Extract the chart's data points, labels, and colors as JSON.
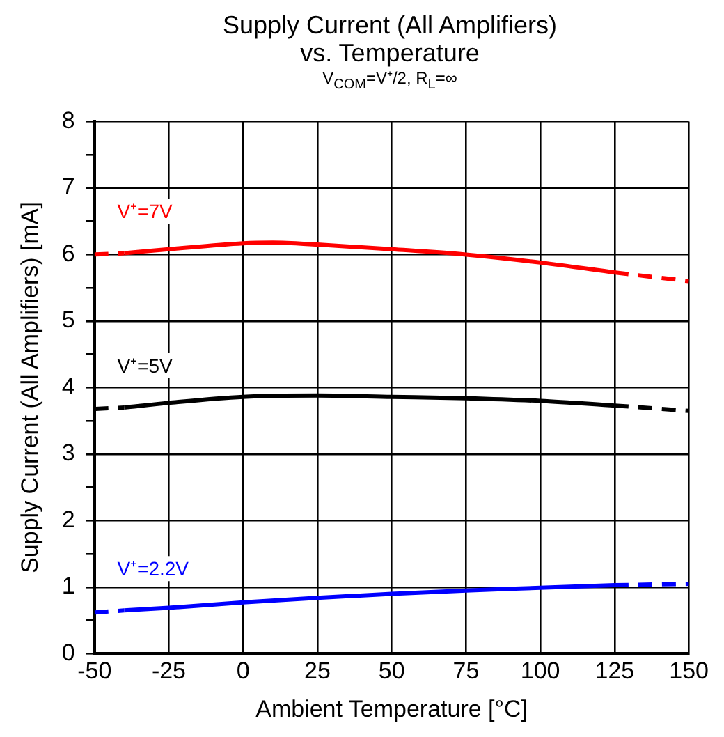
{
  "chart_data": {
    "type": "line",
    "title": "Supply Current (All Amplifiers)\nvs. Temperature",
    "subtitle": "V$_{COM}$=V⁺/2, R$_{L}$=∞",
    "xlabel": "Ambient Temperature [°C]",
    "ylabel": "Supply Current (All Amplifiers) [mA]",
    "xlim": [
      -50,
      150
    ],
    "xticks": [
      -50,
      -25,
      0,
      25,
      50,
      75,
      100,
      125,
      150
    ],
    "ylim": [
      0,
      8
    ],
    "yticks": [
      0,
      {
        "value": 0.5,
        "label": null
      },
      1,
      {
        "value": 1.5,
        "label": null
      },
      2,
      {
        "value": 2.5,
        "label": null
      },
      3,
      {
        "value": 3.5,
        "label": null
      },
      4,
      {
        "value": 4.5,
        "label": null
      },
      5,
      {
        "value": 5.5,
        "label": null
      },
      6,
      {
        "value": 6.5,
        "label": null
      },
      7,
      {
        "value": 7.5,
        "label": null
      },
      8
    ],
    "grid": true,
    "legend": false,
    "marker": "none",
    "series": [
      {
        "name": "V⁺=7V",
        "color": "#ff0000",
        "line_style": "solid",
        "x": [
          -40,
          -25,
          0,
          10,
          25,
          50,
          75,
          100,
          125
        ],
        "values": [
          6.02,
          6.08,
          6.17,
          6.18,
          6.15,
          6.08,
          6.0,
          5.88,
          5.73
        ]
      },
      {
        "color": "#ff0000",
        "line_style": "dashed",
        "x": [
          -50,
          -40
        ],
        "values": [
          6.0,
          6.02
        ]
      },
      {
        "color": "#ff0000",
        "line_style": "dashed",
        "x": [
          125,
          150
        ],
        "values": [
          5.73,
          5.6
        ]
      },
      {
        "name": "V⁺=5V",
        "color": "#000000",
        "line_style": "solid",
        "x": [
          -40,
          -25,
          0,
          25,
          50,
          75,
          100,
          125
        ],
        "values": [
          3.7,
          3.77,
          3.86,
          3.88,
          3.86,
          3.84,
          3.8,
          3.73
        ]
      },
      {
        "color": "#000000",
        "line_style": "dashed",
        "x": [
          -50,
          -40
        ],
        "values": [
          3.68,
          3.7
        ]
      },
      {
        "color": "#000000",
        "line_style": "dashed",
        "x": [
          125,
          150
        ],
        "values": [
          3.73,
          3.65
        ]
      },
      {
        "name": "V⁺=2.2V",
        "color": "#0000ff",
        "line_style": "solid",
        "x": [
          -40,
          -25,
          0,
          25,
          50,
          75,
          100,
          125
        ],
        "values": [
          0.65,
          0.69,
          0.77,
          0.84,
          0.9,
          0.95,
          0.99,
          1.03
        ]
      },
      {
        "color": "#0000ff",
        "line_style": "dashed",
        "x": [
          -50,
          -40
        ],
        "values": [
          0.62,
          0.65
        ]
      },
      {
        "color": "#0000ff",
        "line_style": "dashed",
        "x": [
          125,
          150
        ],
        "values": [
          1.03,
          1.05
        ]
      }
    ]
  }
}
